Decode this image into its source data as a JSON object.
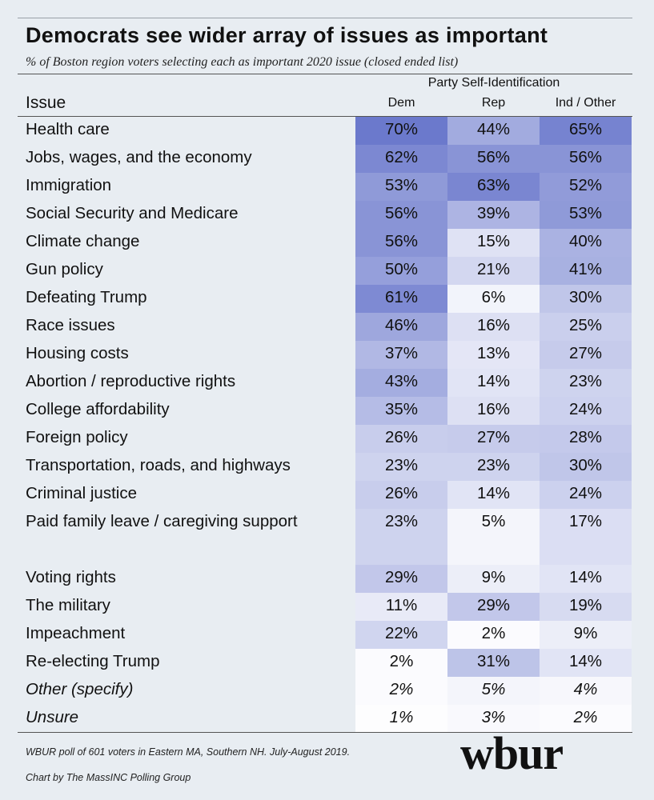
{
  "header": {
    "title": "Democrats see wider array of issues as important",
    "subtitle": "% of Boston region voters selecting each as important 2020 issue (closed ended list)",
    "party_label": "Party Self-Identification",
    "issue_label": "Issue"
  },
  "footer": {
    "source": "WBUR poll of 601 voters in Eastern MA, Southern NH. July-August 2019.",
    "credit": "Chart by The MassINC Polling Group",
    "logo": "wbur"
  },
  "colors": {
    "low": "#ffffff",
    "high": "#6b79cc",
    "background": "#e8edf2"
  },
  "chart_data": {
    "type": "table",
    "title": "Democrats see wider array of issues as important",
    "subtitle": "% of Boston region voters selecting each as important 2020 issue (closed ended list)",
    "columns": [
      "Dem",
      "Rep",
      "Ind / Other"
    ],
    "rows": [
      {
        "issue": "Health care",
        "values": [
          70,
          44,
          65
        ]
      },
      {
        "issue": "Jobs, wages, and the economy",
        "values": [
          62,
          56,
          56
        ]
      },
      {
        "issue": "Immigration",
        "values": [
          53,
          63,
          52
        ]
      },
      {
        "issue": "Social Security and Medicare",
        "values": [
          56,
          39,
          53
        ]
      },
      {
        "issue": "Climate change",
        "values": [
          56,
          15,
          40
        ]
      },
      {
        "issue": "Gun policy",
        "values": [
          50,
          21,
          41
        ]
      },
      {
        "issue": "Defeating Trump",
        "values": [
          61,
          6,
          30
        ]
      },
      {
        "issue": "Race issues",
        "values": [
          46,
          16,
          25
        ]
      },
      {
        "issue": "Housing costs",
        "values": [
          37,
          13,
          27
        ]
      },
      {
        "issue": "Abortion / reproductive rights",
        "values": [
          43,
          14,
          23
        ]
      },
      {
        "issue": "College affordability",
        "values": [
          35,
          16,
          24
        ]
      },
      {
        "issue": "Foreign policy",
        "values": [
          26,
          27,
          28
        ]
      },
      {
        "issue": "Transportation, roads, and highways",
        "values": [
          23,
          23,
          30
        ]
      },
      {
        "issue": "Criminal justice",
        "values": [
          26,
          14,
          24
        ]
      },
      {
        "issue": "Paid family leave / caregiving support",
        "values": [
          23,
          5,
          17
        ]
      },
      {
        "issue": "Voting rights",
        "values": [
          29,
          9,
          14
        ]
      },
      {
        "issue": "The military",
        "values": [
          11,
          29,
          19
        ]
      },
      {
        "issue": "Impeachment",
        "values": [
          22,
          2,
          9
        ]
      },
      {
        "issue": "Re-electing Trump",
        "values": [
          2,
          31,
          14
        ]
      },
      {
        "issue": "Other (specify)",
        "values": [
          2,
          5,
          4
        ],
        "italic": true
      },
      {
        "issue": "Unsure",
        "values": [
          1,
          3,
          2
        ],
        "italic": true
      }
    ],
    "value_suffix": "%"
  }
}
